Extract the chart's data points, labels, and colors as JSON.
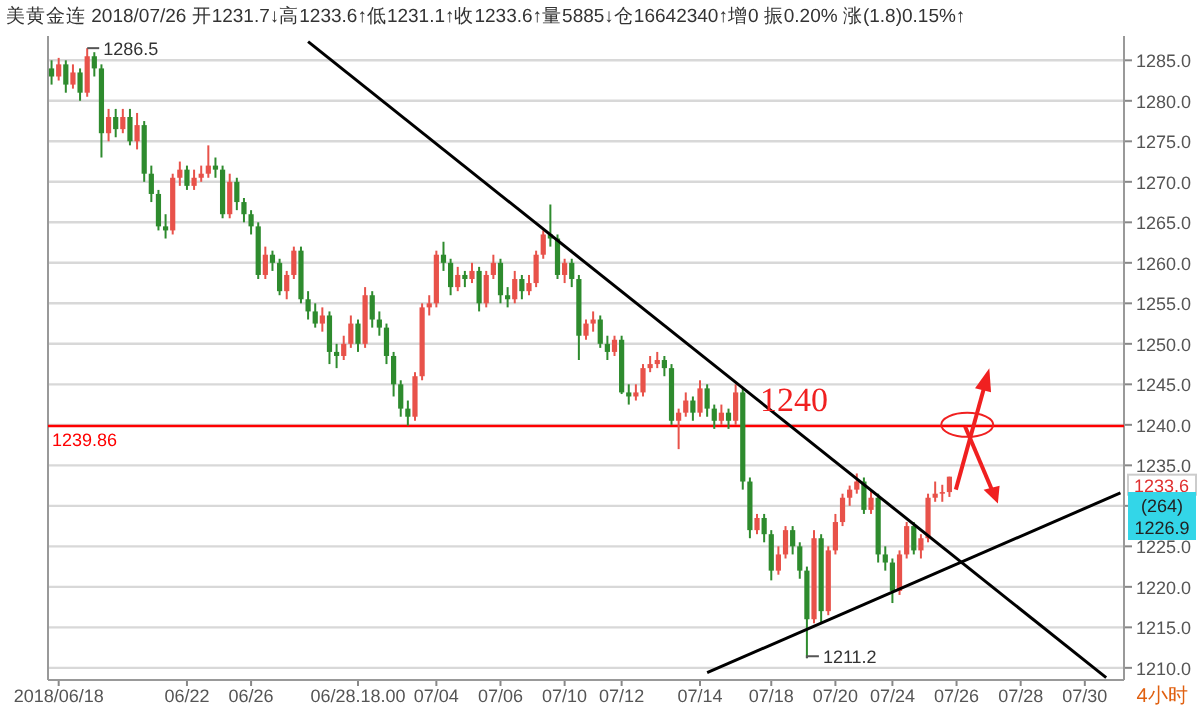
{
  "chart_data": {
    "type": "candlestick",
    "title": "美黄金连 2018/07/26 开1231.7↓高1233.6↑低1231.1↑收1233.6↑量5885↓仓16642340↑增0 振0.20% 涨(1.8)0.15%↑",
    "categories": [
      null,
      "2018/06/18",
      null,
      null,
      null,
      null,
      null,
      null,
      null,
      null,
      null,
      null,
      null,
      null,
      null,
      null,
      null,
      null,
      null,
      "06/22",
      null,
      null,
      null,
      null,
      null,
      null,
      null,
      null,
      "06/26",
      null,
      null,
      null,
      null,
      null,
      null,
      null,
      null,
      null,
      null,
      null,
      null,
      null,
      null,
      "06/28.18.00",
      null,
      null,
      null,
      null,
      null,
      null,
      null,
      null,
      null,
      null,
      "07/04",
      null,
      null,
      null,
      null,
      null,
      null,
      null,
      null,
      "07/06",
      null,
      null,
      null,
      null,
      null,
      null,
      null,
      null,
      "07/10",
      null,
      null,
      null,
      null,
      null,
      null,
      null,
      "07/12",
      null,
      null,
      null,
      null,
      null,
      null,
      null,
      null,
      null,
      null,
      "07/14",
      null,
      null,
      null,
      null,
      null,
      null,
      null,
      null,
      null,
      "07/18",
      null,
      null,
      null,
      null,
      null,
      null,
      null,
      null,
      "07/20",
      null,
      null,
      null,
      null,
      null,
      null,
      null,
      "07/24",
      null,
      null,
      null,
      null,
      null,
      null,
      null,
      null,
      "07/26",
      null,
      null,
      null,
      null,
      null,
      null,
      null,
      null,
      "07/28",
      null,
      null,
      null,
      null,
      null,
      null,
      null,
      null,
      "07/30",
      null,
      null,
      null,
      null,
      null
    ],
    "ohlc": [
      [
        1284,
        1285,
        1282,
        1283
      ],
      [
        1283,
        1285.3,
        1282.5,
        1284.5
      ],
      [
        1284.5,
        1285,
        1281,
        1282
      ],
      [
        1282,
        1284.5,
        1281.5,
        1283.5
      ],
      [
        1283.5,
        1284,
        1280,
        1281
      ],
      [
        1281,
        1286.5,
        1280.5,
        1285.5
      ],
      [
        1285.5,
        1286,
        1283,
        1284
      ],
      [
        1284,
        1284.5,
        1273,
        1276
      ],
      [
        1276,
        1279,
        1275,
        1278
      ],
      [
        1278,
        1279,
        1275.5,
        1276.5
      ],
      [
        1276.5,
        1279,
        1276,
        1278
      ],
      [
        1278,
        1279,
        1274.5,
        1275
      ],
      [
        1275,
        1278.5,
        1274,
        1277
      ],
      [
        1277,
        1277.5,
        1270,
        1271
      ],
      [
        1271,
        1272,
        1267.5,
        1268.5
      ],
      [
        1268.5,
        1269,
        1264,
        1264.5
      ],
      [
        1264.5,
        1266,
        1263,
        1264
      ],
      [
        1264,
        1271,
        1263.5,
        1270.5
      ],
      [
        1270.5,
        1272.5,
        1269.5,
        1271.5
      ],
      [
        1271.5,
        1272,
        1269,
        1269.5
      ],
      [
        1269.5,
        1271.5,
        1269,
        1270.5
      ],
      [
        1270.5,
        1272,
        1270,
        1271
      ],
      [
        1271,
        1274.5,
        1270.5,
        1272
      ],
      [
        1272,
        1273,
        1270.5,
        1271.5
      ],
      [
        1271.5,
        1272,
        1265.5,
        1266
      ],
      [
        1266,
        1271,
        1265.5,
        1270
      ],
      [
        1270,
        1270.5,
        1266.5,
        1267.5
      ],
      [
        1267.5,
        1268,
        1265,
        1266
      ],
      [
        1266,
        1266.5,
        1263.5,
        1264.5
      ],
      [
        1264.5,
        1265,
        1258,
        1258.5
      ],
      [
        1258.5,
        1262,
        1258,
        1261
      ],
      [
        1261,
        1261.5,
        1259,
        1260
      ],
      [
        1260,
        1260.5,
        1256,
        1256.5
      ],
      [
        1256.5,
        1259,
        1255.5,
        1258.5
      ],
      [
        1258.5,
        1262,
        1258,
        1261.5
      ],
      [
        1261.5,
        1262,
        1255,
        1255.5
      ],
      [
        1255.5,
        1256.5,
        1253,
        1254
      ],
      [
        1254,
        1255,
        1252,
        1252.5
      ],
      [
        1252.5,
        1254.5,
        1251.5,
        1253.5
      ],
      [
        1253.5,
        1254,
        1247.5,
        1249
      ],
      [
        1249,
        1250,
        1247,
        1248.5
      ],
      [
        1248.5,
        1251,
        1248,
        1250
      ],
      [
        1250,
        1253.5,
        1249.5,
        1252.5
      ],
      [
        1252.5,
        1253,
        1249,
        1250
      ],
      [
        1250,
        1257,
        1249.5,
        1256
      ],
      [
        1256,
        1256.5,
        1252,
        1253
      ],
      [
        1253,
        1254,
        1251,
        1252
      ],
      [
        1252,
        1252.5,
        1247.5,
        1248.5
      ],
      [
        1248.5,
        1249,
        1243.5,
        1245
      ],
      [
        1245,
        1245.5,
        1241,
        1242
      ],
      [
        1242,
        1243,
        1239.9,
        1241
      ],
      [
        1241,
        1246.5,
        1240.5,
        1246
      ],
      [
        1246,
        1255,
        1245.5,
        1254.5
      ],
      [
        1254.5,
        1256,
        1253.5,
        1255
      ],
      [
        1255,
        1261.5,
        1254.5,
        1261
      ],
      [
        1261,
        1262.6,
        1259,
        1260
      ],
      [
        1260,
        1260.5,
        1256,
        1257
      ],
      [
        1257,
        1259.5,
        1256.5,
        1258.5
      ],
      [
        1258.5,
        1259,
        1257,
        1258
      ],
      [
        1258,
        1260,
        1257.5,
        1259
      ],
      [
        1259,
        1259.5,
        1254,
        1255
      ],
      [
        1255,
        1259,
        1254.5,
        1258.5
      ],
      [
        1258.5,
        1261,
        1258,
        1260
      ],
      [
        1260,
        1260.5,
        1255,
        1256
      ],
      [
        1256,
        1257,
        1254.5,
        1255.5
      ],
      [
        1255.5,
        1259,
        1255,
        1258
      ],
      [
        1258,
        1258.5,
        1255.5,
        1256.5
      ],
      [
        1256.5,
        1258.5,
        1256,
        1257.5
      ],
      [
        1257.5,
        1261.5,
        1257,
        1261
      ],
      [
        1261,
        1264,
        1260.5,
        1263.5
      ],
      [
        1263.5,
        1267.2,
        1262,
        1263
      ],
      [
        1263,
        1263.5,
        1258,
        1258.5
      ],
      [
        1258.5,
        1260.5,
        1257.5,
        1260
      ],
      [
        1260,
        1260.5,
        1257,
        1258
      ],
      [
        1258,
        1258.5,
        1248,
        1251
      ],
      [
        1251,
        1253,
        1250.5,
        1252.5
      ],
      [
        1252.5,
        1254,
        1251.5,
        1253
      ],
      [
        1253,
        1253.5,
        1249.5,
        1250
      ],
      [
        1250,
        1251,
        1248,
        1249
      ],
      [
        1249,
        1251,
        1248.5,
        1250.5
      ],
      [
        1250.5,
        1251,
        1243.8,
        1244
      ],
      [
        1244,
        1245,
        1242.5,
        1243.5
      ],
      [
        1243.5,
        1245,
        1243,
        1244
      ],
      [
        1244,
        1247.5,
        1243.5,
        1247
      ],
      [
        1247,
        1248.5,
        1246.5,
        1247.5
      ],
      [
        1247.5,
        1249,
        1247,
        1248
      ],
      [
        1248,
        1248.5,
        1246,
        1247
      ],
      [
        1247,
        1247.5,
        1240,
        1240.5
      ],
      [
        1240.5,
        1242,
        1237,
        1241.5
      ],
      [
        1241.5,
        1244,
        1241,
        1243
      ],
      [
        1243,
        1243.5,
        1240.5,
        1241.5
      ],
      [
        1241.5,
        1245.5,
        1241,
        1244.5
      ],
      [
        1244.5,
        1245,
        1241,
        1242
      ],
      [
        1242,
        1242.5,
        1239.5,
        1240.5
      ],
      [
        1240.5,
        1242.5,
        1240,
        1241.5
      ],
      [
        1241.5,
        1242,
        1239.5,
        1240.5
      ],
      [
        1240.5,
        1245,
        1240,
        1244
      ],
      [
        1244,
        1244.5,
        1232,
        1233
      ],
      [
        1233,
        1233.5,
        1226,
        1227
      ],
      [
        1227,
        1229,
        1226.5,
        1228.5
      ],
      [
        1228.5,
        1229,
        1225.5,
        1226.5
      ],
      [
        1226.5,
        1227,
        1220.8,
        1222
      ],
      [
        1222,
        1225,
        1221.5,
        1224
      ],
      [
        1224,
        1227.5,
        1223.5,
        1227
      ],
      [
        1227,
        1227.5,
        1224,
        1225
      ],
      [
        1225,
        1225.5,
        1221,
        1222
      ],
      [
        1222,
        1222.5,
        1211.2,
        1216
      ],
      [
        1216,
        1227,
        1215.5,
        1226
      ],
      [
        1226,
        1226.5,
        1215.5,
        1217
      ],
      [
        1217,
        1225,
        1216.5,
        1224.5
      ],
      [
        1224.5,
        1229,
        1224,
        1228
      ],
      [
        1228,
        1231.5,
        1227.5,
        1231
      ],
      [
        1231,
        1232.5,
        1230,
        1232
      ],
      [
        1232,
        1234,
        1231.5,
        1233
      ],
      [
        1233,
        1233.5,
        1229,
        1229.5
      ],
      [
        1229.5,
        1232,
        1229,
        1231
      ],
      [
        1231,
        1231.5,
        1223,
        1224
      ],
      [
        1224,
        1225,
        1222,
        1223
      ],
      [
        1223,
        1223.5,
        1218,
        1219.5
      ],
      [
        1219.5,
        1224.5,
        1219,
        1224
      ],
      [
        1224,
        1228,
        1223.5,
        1227.5
      ],
      [
        1227.5,
        1228,
        1224,
        1224.5
      ],
      [
        1224.5,
        1226.5,
        1223.5,
        1226
      ],
      [
        1226,
        1231.5,
        1225.5,
        1231
      ],
      [
        1231,
        1233,
        1230.5,
        1231.5
      ],
      [
        1231.5,
        1232.6,
        1230.5,
        1231.7
      ],
      [
        1231.7,
        1233.6,
        1231.1,
        1233.6
      ],
      null,
      null,
      null,
      null,
      null,
      null,
      null,
      null,
      null,
      null,
      null,
      null,
      null,
      null,
      null,
      null,
      null,
      null,
      null,
      null,
      null,
      null,
      null,
      null
    ],
    "colors": [
      "#2e8b2e",
      "#e8524a",
      "#2e8b2e",
      "#e8524a",
      "#2e8b2e",
      "#e8524a",
      "#2e8b2e",
      "#2e8b2e",
      "#e8524a",
      "#2e8b2e",
      "#e8524a",
      "#2e8b2e",
      "#e8524a",
      "#2e8b2e",
      "#2e8b2e",
      "#2e8b2e",
      "#2e8b2e",
      "#e8524a",
      "#e8524a",
      "#2e8b2e",
      "#e8524a",
      "#e8524a",
      "#e8524a",
      "#2e8b2e",
      "#2e8b2e",
      "#e8524a",
      "#2e8b2e",
      "#2e8b2e",
      "#2e8b2e",
      "#2e8b2e",
      "#e8524a",
      "#2e8b2e",
      "#2e8b2e",
      "#e8524a",
      "#e8524a",
      "#2e8b2e",
      "#2e8b2e",
      "#2e8b2e",
      "#e8524a",
      "#2e8b2e",
      "#2e8b2e",
      "#e8524a",
      "#e8524a",
      "#2e8b2e",
      "#e8524a",
      "#2e8b2e",
      "#2e8b2e",
      "#2e8b2e",
      "#2e8b2e",
      "#2e8b2e",
      "#2e8b2e",
      "#e8524a",
      "#e8524a",
      "#e8524a",
      "#e8524a",
      "#2e8b2e",
      "#2e8b2e",
      "#e8524a",
      "#2e8b2e",
      "#e8524a",
      "#2e8b2e",
      "#e8524a",
      "#e8524a",
      "#2e8b2e",
      "#2e8b2e",
      "#e8524a",
      "#2e8b2e",
      "#e8524a",
      "#e8524a",
      "#e8524a",
      "#2e8b2e",
      "#2e8b2e",
      "#e8524a",
      "#2e8b2e",
      "#2e8b2e",
      "#e8524a",
      "#e8524a",
      "#2e8b2e",
      "#2e8b2e",
      "#e8524a",
      "#2e8b2e",
      "#2e8b2e",
      "#e8524a",
      "#e8524a",
      "#e8524a",
      "#e8524a",
      "#2e8b2e",
      "#2e8b2e",
      "#e8524a",
      "#e8524a",
      "#2e8b2e",
      "#e8524a",
      "#2e8b2e",
      "#2e8b2e",
      "#e8524a",
      "#2e8b2e",
      "#e8524a",
      "#2e8b2e",
      "#2e8b2e",
      "#e8524a",
      "#2e8b2e",
      "#2e8b2e",
      "#e8524a",
      "#e8524a",
      "#2e8b2e",
      "#2e8b2e",
      "#2e8b2e",
      "#e8524a",
      "#2e8b2e",
      "#e8524a",
      "#e8524a",
      "#e8524a",
      "#e8524a",
      "#e8524a",
      "#2e8b2e",
      "#e8524a",
      "#2e8b2e",
      "#2e8b2e",
      "#2e8b2e",
      "#e8524a",
      "#e8524a",
      "#2e8b2e",
      "#e8524a",
      "#e8524a",
      "#e8524a",
      "#e8524a",
      "#e8524a",
      null,
      null,
      null,
      null,
      null,
      null,
      null,
      null,
      null,
      null,
      null,
      null,
      null,
      null,
      null,
      null,
      null,
      null,
      null,
      null,
      null,
      null,
      null,
      null
    ],
    "series": [
      {
        "type": "line",
        "color": "#000000",
        "values": [
          null,
          null,
          null,
          null,
          null,
          null,
          null,
          null,
          null,
          null,
          null,
          null,
          null,
          null,
          null,
          null,
          null,
          null,
          null,
          null,
          null,
          null,
          null,
          null,
          null,
          null,
          null,
          null,
          null,
          null,
          null,
          null,
          null,
          null,
          null,
          null,
          1287.3,
          null,
          null,
          null,
          null,
          null,
          null,
          null,
          null,
          null,
          null,
          null,
          null,
          null,
          null,
          null,
          null,
          null,
          null,
          null,
          null,
          null,
          null,
          null,
          null,
          null,
          null,
          null,
          null,
          null,
          null,
          null,
          null,
          null,
          null,
          null,
          null,
          null,
          null,
          null,
          null,
          null,
          null,
          null,
          null,
          null,
          null,
          null,
          null,
          null,
          null,
          null,
          null,
          null,
          null,
          null,
          null,
          null,
          null,
          null,
          null,
          null,
          null,
          null,
          null,
          null,
          null,
          null,
          null,
          null,
          null,
          null,
          null,
          null,
          null,
          null,
          null,
          null,
          null,
          null,
          null,
          null,
          null,
          null,
          null,
          null,
          null,
          null,
          null,
          null,
          null,
          null,
          null,
          null,
          null,
          null,
          null,
          null,
          null,
          null,
          null,
          null,
          null,
          null,
          null,
          null,
          null,
          null,
          null,
          null,
          null,
          null,
          1208.8,
          null,
          null
        ]
      },
      {
        "type": "line",
        "color": "#000000",
        "values": [
          null,
          null,
          null,
          null,
          null,
          null,
          null,
          null,
          null,
          null,
          null,
          null,
          null,
          null,
          null,
          null,
          null,
          null,
          null,
          null,
          null,
          null,
          null,
          null,
          null,
          null,
          null,
          null,
          null,
          null,
          null,
          null,
          null,
          null,
          null,
          null,
          null,
          null,
          null,
          null,
          null,
          null,
          null,
          null,
          null,
          null,
          null,
          null,
          null,
          null,
          null,
          null,
          null,
          null,
          null,
          null,
          null,
          null,
          null,
          null,
          null,
          null,
          null,
          null,
          null,
          null,
          null,
          null,
          null,
          null,
          null,
          null,
          null,
          null,
          null,
          null,
          null,
          null,
          null,
          null,
          null,
          null,
          null,
          null,
          null,
          null,
          null,
          null,
          null,
          null,
          null,
          null,
          1209.4,
          null,
          null,
          null,
          null,
          null,
          null,
          null,
          null,
          null,
          null,
          null,
          null,
          null,
          null,
          null,
          null,
          null,
          null,
          null,
          null,
          null,
          null,
          null,
          null,
          null,
          null,
          null,
          null,
          null,
          null,
          null,
          null,
          null,
          null,
          null,
          null,
          null,
          null,
          null,
          null,
          null,
          null,
          null,
          null,
          null,
          null,
          null,
          null,
          null,
          null,
          null,
          null,
          null,
          null,
          null,
          null,
          null,
          1231.6
        ]
      }
    ],
    "ylim": [
      1208.5,
      1288
    ],
    "yticks": [
      {
        "value": 1210,
        "label": "1210.0"
      },
      {
        "value": 1215,
        "label": "1215.0"
      },
      {
        "value": 1220,
        "label": "1220.0"
      },
      {
        "value": 1225,
        "label": "1225.0"
      },
      {
        "value": 1230,
        "label": null
      },
      {
        "value": 1235,
        "label": "1235.0"
      },
      {
        "value": 1240,
        "label": "1240.0"
      },
      {
        "value": 1245,
        "label": "1245.0"
      },
      {
        "value": 1250,
        "label": "1250.0"
      },
      {
        "value": 1255,
        "label": "1255.0"
      },
      {
        "value": 1260,
        "label": "1260.0"
      },
      {
        "value": 1265,
        "label": "1265.0"
      },
      {
        "value": 1270,
        "label": "1270.0"
      },
      {
        "value": 1275,
        "label": "1275.0"
      },
      {
        "value": 1280,
        "label": "1280.0"
      },
      {
        "value": 1285,
        "label": "1285.0"
      }
    ],
    "grid": "y",
    "ref_lines": [
      {
        "axis": "y",
        "value": 1239.86,
        "label": "1239.86",
        "color": "#ff0000"
      }
    ],
    "annotations": [
      "1286.5",
      "1211.2",
      {
        "text": "1240",
        "y": 1240
      },
      "1233.6",
      "(264)",
      "1226.9",
      "4小时"
    ]
  }
}
